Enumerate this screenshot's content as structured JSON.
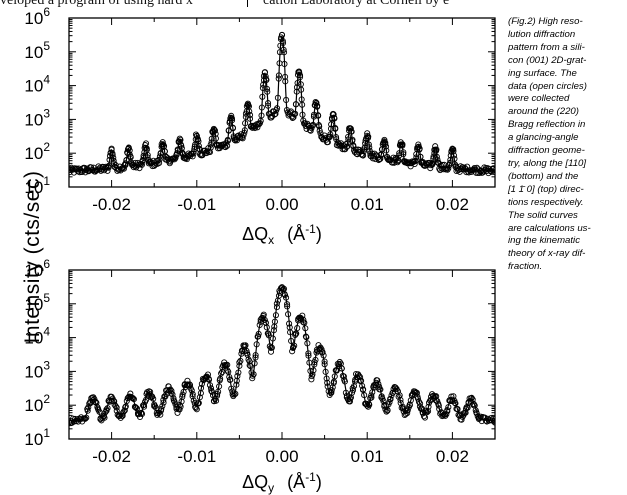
{
  "page": {
    "header_left": "veloped a program of using hard x",
    "header_right": "cation Laboratory at Cornell by e"
  },
  "caption_lines": [
    "(Fig.2)  High reso-",
    "lution diffraction",
    "pattern from a sili-",
    "con (001) 2D-grat-",
    "ing surface.  The",
    "data (open circles)",
    "were collected",
    "around the (220)",
    "Bragg reflection in",
    "a glancing-angle",
    "diffraction geome-",
    "try, along the [110]",
    "(bottom) and the",
    "[1 1̄ 0] (top) direc-",
    "tions respectively.",
    "The solid curves",
    "are calculations us-",
    "ing the kinematic",
    "theory of x-ray dif-",
    "fraction."
  ],
  "shared_ylabel": "Intensity (cts/sec)",
  "chart_data": [
    {
      "type": "scatter",
      "panel": "top",
      "xlabel": "ΔQ",
      "xlabel_sub": "x",
      "xlabel_unit": "(Å",
      "xlabel_unit_exp": "-1",
      "xlim": [
        -0.025,
        0.025
      ],
      "ylim": [
        10,
        1000000
      ],
      "yscale": "log",
      "x_ticks": [
        -0.02,
        -0.01,
        0.0,
        0.01,
        0.02
      ],
      "x_tick_labels": [
        "-0.02",
        "-0.01",
        "0.00",
        "0.01",
        "0.02"
      ],
      "y_ticks": [
        10,
        100,
        1000,
        10000,
        100000,
        1000000
      ],
      "y_tick_labels": [
        [
          "10",
          "1"
        ],
        [
          "10",
          "2"
        ],
        [
          "10",
          "3"
        ],
        [
          "10",
          "4"
        ],
        [
          "10",
          "5"
        ],
        [
          "10",
          "6"
        ]
      ],
      "series": [
        {
          "marker": "open-circle",
          "peaks": [
            {
              "x": -0.02,
              "y": 90
            },
            {
              "x": -0.018,
              "y": 95
            },
            {
              "x": -0.016,
              "y": 115
            },
            {
              "x": -0.014,
              "y": 150
            },
            {
              "x": -0.012,
              "y": 180
            },
            {
              "x": -0.01,
              "y": 260
            },
            {
              "x": -0.008,
              "y": 420
            },
            {
              "x": -0.006,
              "y": 1000
            },
            {
              "x": -0.004,
              "y": 2500
            },
            {
              "x": -0.002,
              "y": 22000
            },
            {
              "x": 0.0,
              "y": 280000
            },
            {
              "x": 0.002,
              "y": 24000
            },
            {
              "x": 0.004,
              "y": 2800
            },
            {
              "x": 0.006,
              "y": 1100
            },
            {
              "x": 0.008,
              "y": 420
            },
            {
              "x": 0.01,
              "y": 270
            },
            {
              "x": 0.012,
              "y": 180
            },
            {
              "x": 0.014,
              "y": 140
            },
            {
              "x": 0.016,
              "y": 120
            },
            {
              "x": 0.018,
              "y": 100
            },
            {
              "x": 0.02,
              "y": 90
            }
          ],
          "background": [
            {
              "x": -0.025,
              "y": 30
            },
            {
              "x": -0.02,
              "y": 35
            },
            {
              "x": -0.015,
              "y": 50
            },
            {
              "x": -0.01,
              "y": 90
            },
            {
              "x": -0.006,
              "y": 200
            },
            {
              "x": -0.003,
              "y": 600
            },
            {
              "x": -0.001,
              "y": 1500
            },
            {
              "x": 0.0,
              "y": 1800
            },
            {
              "x": 0.001,
              "y": 1500
            },
            {
              "x": 0.003,
              "y": 600
            },
            {
              "x": 0.006,
              "y": 200
            },
            {
              "x": 0.01,
              "y": 90
            },
            {
              "x": 0.015,
              "y": 50
            },
            {
              "x": 0.02,
              "y": 35
            },
            {
              "x": 0.025,
              "y": 30
            }
          ]
        }
      ]
    },
    {
      "type": "scatter",
      "panel": "bottom",
      "xlabel": "ΔQ",
      "xlabel_sub": "y",
      "xlabel_unit": "(Å",
      "xlabel_unit_exp": "-1",
      "xlim": [
        -0.025,
        0.025
      ],
      "ylim": [
        10,
        1000000
      ],
      "yscale": "log",
      "x_ticks": [
        -0.02,
        -0.01,
        0.0,
        0.01,
        0.02
      ],
      "x_tick_labels": [
        "-0.02",
        "-0.01",
        "0.00",
        "0.01",
        "0.02"
      ],
      "y_ticks": [
        10,
        100,
        1000,
        10000,
        100000,
        1000000
      ],
      "y_tick_labels": [
        [
          "10",
          "1"
        ],
        [
          "10",
          "2"
        ],
        [
          "10",
          "3"
        ],
        [
          "10",
          "4"
        ],
        [
          "10",
          "5"
        ],
        [
          "10",
          "6"
        ]
      ],
      "series": [
        {
          "marker": "open-circle",
          "peaks": [
            {
              "x": -0.0222,
              "y": 110
            },
            {
              "x": -0.02,
              "y": 120
            },
            {
              "x": -0.0178,
              "y": 150
            },
            {
              "x": -0.0156,
              "y": 190
            },
            {
              "x": -0.0133,
              "y": 260
            },
            {
              "x": -0.0111,
              "y": 420
            },
            {
              "x": -0.0089,
              "y": 700
            },
            {
              "x": -0.0067,
              "y": 1500
            },
            {
              "x": -0.0044,
              "y": 5000
            },
            {
              "x": -0.0022,
              "y": 40000
            },
            {
              "x": 0.0,
              "y": 300000
            },
            {
              "x": 0.0022,
              "y": 40000
            },
            {
              "x": 0.0044,
              "y": 5000
            },
            {
              "x": 0.0067,
              "y": 1500
            },
            {
              "x": 0.0089,
              "y": 700
            },
            {
              "x": 0.0111,
              "y": 420
            },
            {
              "x": 0.0133,
              "y": 260
            },
            {
              "x": 0.0156,
              "y": 190
            },
            {
              "x": 0.0178,
              "y": 150
            },
            {
              "x": 0.02,
              "y": 120
            },
            {
              "x": 0.0222,
              "y": 110
            }
          ],
          "background": [
            {
              "x": -0.025,
              "y": 35
            },
            {
              "x": -0.02,
              "y": 40
            },
            {
              "x": -0.015,
              "y": 50
            },
            {
              "x": -0.01,
              "y": 70
            },
            {
              "x": -0.006,
              "y": 110
            },
            {
              "x": -0.003,
              "y": 250
            },
            {
              "x": -0.001,
              "y": 600
            },
            {
              "x": 0.0,
              "y": 900
            },
            {
              "x": 0.001,
              "y": 600
            },
            {
              "x": 0.003,
              "y": 250
            },
            {
              "x": 0.006,
              "y": 110
            },
            {
              "x": 0.01,
              "y": 70
            },
            {
              "x": 0.015,
              "y": 50
            },
            {
              "x": 0.02,
              "y": 40
            },
            {
              "x": 0.025,
              "y": 35
            }
          ]
        }
      ]
    }
  ]
}
